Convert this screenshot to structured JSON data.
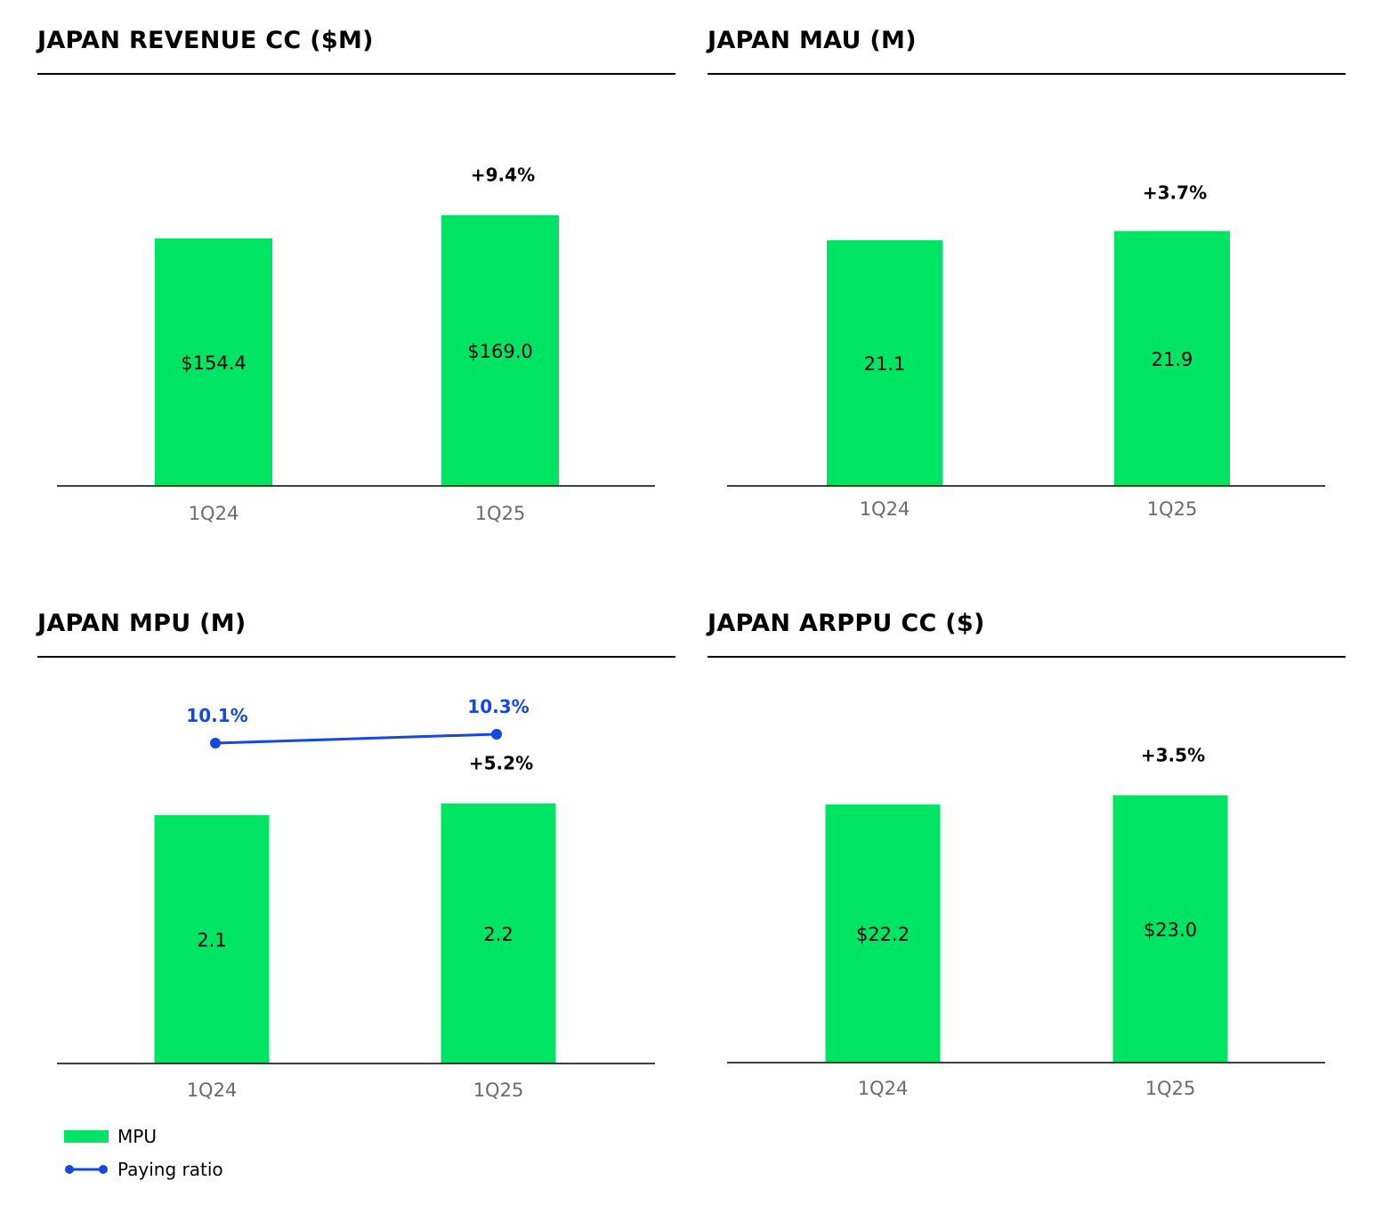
{
  "colors": {
    "bar": "#00e463",
    "line": "#1447e6",
    "axis": "#000000",
    "tick": "#6b6b6b"
  },
  "chart_data": [
    {
      "type": "bar",
      "title": "JAPAN REVENUE CC ($M)",
      "categories": [
        "1Q24",
        "1Q25"
      ],
      "values": [
        154.4,
        169.0
      ],
      "value_labels": [
        "$154.4",
        "$169.0"
      ],
      "growth_label": "+9.4%",
      "xlabel": "",
      "ylabel": "",
      "grid": false
    },
    {
      "type": "bar",
      "title": "JAPAN MAU (M)",
      "categories": [
        "1Q24",
        "1Q25"
      ],
      "values": [
        21.1,
        21.9
      ],
      "value_labels": [
        "21.1",
        "21.9"
      ],
      "growth_label": "+3.7%",
      "xlabel": "",
      "ylabel": "",
      "grid": false
    },
    {
      "type": "bar",
      "title": "JAPAN MPU (M)",
      "categories": [
        "1Q24",
        "1Q25"
      ],
      "series": [
        {
          "name": "MPU",
          "type": "bar",
          "values": [
            2.1,
            2.2
          ],
          "value_labels": [
            "2.1",
            "2.2"
          ]
        },
        {
          "name": "Paying ratio",
          "type": "line",
          "values": [
            10.1,
            10.3
          ],
          "value_labels": [
            "10.1%",
            "10.3%"
          ]
        }
      ],
      "growth_label": "+5.2%",
      "legend": {
        "placement": "bottom-left",
        "entries": [
          "MPU",
          "Paying ratio"
        ]
      },
      "xlabel": "",
      "ylabel": "",
      "grid": false
    },
    {
      "type": "bar",
      "title": "JAPAN ARPPU CC ($)",
      "categories": [
        "1Q24",
        "1Q25"
      ],
      "values": [
        22.2,
        23.0
      ],
      "value_labels": [
        "$22.2",
        "$23.0"
      ],
      "growth_label": "+3.5%",
      "xlabel": "",
      "ylabel": "",
      "grid": false
    }
  ]
}
